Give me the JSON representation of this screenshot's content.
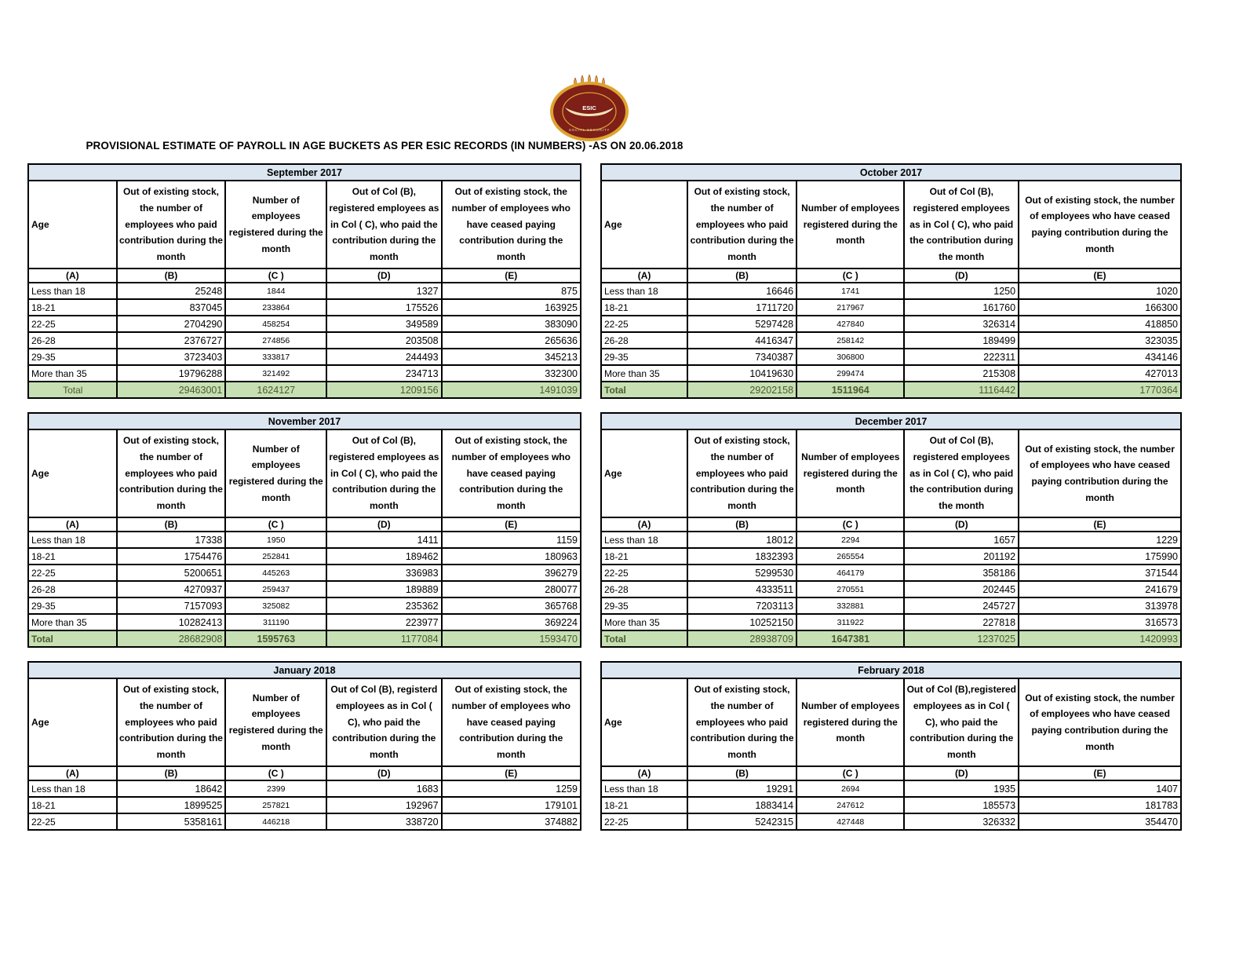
{
  "title": "PROVISIONAL ESTIMATE OF PAYROLL IN AGE BUCKETS AS PER ESIC RECORDS (IN NUMBERS) -AS ON 20.06.2018",
  "logo": {
    "name": "esic-logo",
    "label": "ESIC",
    "subtext": "SOCIAL SECURITY",
    "colors": {
      "maroon": "#7e1f18",
      "gold": "#dfa32e",
      "cream": "#f3e3b5"
    }
  },
  "colors": {
    "month_header_bg": "#dce6f1",
    "total_row_bg": "#c6e0b4",
    "total_text": "#4c5b2d",
    "border": "#000000"
  },
  "letter_row": [
    "(A)",
    "(B)",
    "(C )",
    "(D)",
    "(E)"
  ],
  "tables": [
    {
      "month": "September 2017",
      "headers": [
        "Age",
        "Out of existing stock, the number of employees who paid contribution during the month",
        "Number of employees registered during the month",
        "Out of Col (B), registered employees as in Col ( C), who paid the contribution during the month",
        "Out of existing stock, the number of employees who have ceased paying contribution during the month"
      ],
      "rows": [
        [
          "Less than 18",
          "25248",
          "1844",
          "1327",
          "875"
        ],
        [
          "18-21",
          "837045",
          "233864",
          "175526",
          "163925"
        ],
        [
          "22-25",
          "2704290",
          "458254",
          "349589",
          "383090"
        ],
        [
          "26-28",
          "2376727",
          "274856",
          "203508",
          "265636"
        ],
        [
          "29-35",
          "3723403",
          "333817",
          "244493",
          "345213"
        ],
        [
          "More than 35",
          "19796288",
          "321492",
          "234713",
          "332300"
        ]
      ],
      "total": [
        "Total",
        "29463001",
        "1624127",
        "1209156",
        "1491039"
      ],
      "total_label_align": "center"
    },
    {
      "month": "October 2017",
      "headers": [
        "Age",
        "Out of existing stock, the number of employees who paid contribution during the month",
        "Number of employees registered during the month",
        "Out of Col (B), registered employees as in Col ( C), who paid the contribution during the month",
        "Out of existing stock, the number of employees who have ceased paying contribution during the month"
      ],
      "rows": [
        [
          "Less than 18",
          "16646",
          "1741",
          "1250",
          "1020"
        ],
        [
          "18-21",
          "1711720",
          "217967",
          "161760",
          "166300"
        ],
        [
          "22-25",
          "5297428",
          "427840",
          "326314",
          "418850"
        ],
        [
          "26-28",
          "4416347",
          "258142",
          "189499",
          "323035"
        ],
        [
          "29-35",
          "7340387",
          "306800",
          "222311",
          "434146"
        ],
        [
          "More than 35",
          "10419630",
          "299474",
          "215308",
          "427013"
        ]
      ],
      "total": [
        "Total",
        "29202158",
        "1511964",
        "1116442",
        "1770364"
      ],
      "total_label_align": "left"
    },
    {
      "month": "November 2017",
      "headers": [
        "Age",
        "Out of existing stock, the number of employees who paid contribution during the month",
        "Number of employees registered during the month",
        "Out of Col (B), registered employees as in Col ( C), who paid the contribution during the month",
        "Out of existing stock, the number of employees who have ceased paying contribution during the month"
      ],
      "rows": [
        [
          "Less than 18",
          "17338",
          "1950",
          "1411",
          "1159"
        ],
        [
          "18-21",
          "1754476",
          "252841",
          "189462",
          "180963"
        ],
        [
          "22-25",
          "5200651",
          "445263",
          "336983",
          "396279"
        ],
        [
          "26-28",
          "4270937",
          "259437",
          "189889",
          "280077"
        ],
        [
          "29-35",
          "7157093",
          "325082",
          "235362",
          "365768"
        ],
        [
          "More than 35",
          "10282413",
          "311190",
          "223977",
          "369224"
        ]
      ],
      "total": [
        "Total",
        "28682908",
        "1595763",
        "1177084",
        "1593470"
      ],
      "total_label_align": "left"
    },
    {
      "month": "December 2017",
      "headers": [
        "Age",
        "Out of existing stock, the number of employees who paid contribution during the month",
        "Number of employees registered during the month",
        "Out of Col (B), registered employees as in Col ( C), who paid the contribution during the month",
        "Out of existing stock, the number of employees who have ceased paying contribution during the month"
      ],
      "rows": [
        [
          "Less than 18",
          "18012",
          "2294",
          "1657",
          "1229"
        ],
        [
          "18-21",
          "1832393",
          "265554",
          "201192",
          "175990"
        ],
        [
          "22-25",
          "5299530",
          "464179",
          "358186",
          "371544"
        ],
        [
          "26-28",
          "4333511",
          "270551",
          "202445",
          "241679"
        ],
        [
          "29-35",
          "7203113",
          "332881",
          "245727",
          "313978"
        ],
        [
          "More than 35",
          "10252150",
          "311922",
          "227818",
          "316573"
        ]
      ],
      "total": [
        "Total",
        "28938709",
        "1647381",
        "1237025",
        "1420993"
      ],
      "total_label_align": "left"
    },
    {
      "month": "January 2018",
      "headers": [
        "Age",
        "Out of existing stock, the number of employees who paid contribution during the month",
        "Number of employees registered during the month",
        "Out of Col (B), registerd employees as in Col ( C), who paid the contribution during the month",
        "Out of existing stock, the number of employees who have ceased paying contribution during the month"
      ],
      "rows": [
        [
          "Less than 18",
          "18642",
          "2399",
          "1683",
          "1259"
        ],
        [
          "18-21",
          "1899525",
          "257821",
          "192967",
          "179101"
        ],
        [
          "22-25",
          "5358161",
          "446218",
          "338720",
          "374882"
        ]
      ],
      "total": null,
      "total_label_align": "none"
    },
    {
      "month": "February 2018",
      "headers": [
        "Age",
        "Out of existing stock, the number of employees who paid contribution during the month",
        "Number of employees registered during the month",
        "Out of Col (B),registered employees as in Col ( C), who paid the contribution during the month",
        "Out of existing stock, the number of employees who have ceased paying contribution during the month"
      ],
      "rows": [
        [
          "Less than 18",
          "19291",
          "2694",
          "1935",
          "1407"
        ],
        [
          "18-21",
          "1883414",
          "247612",
          "185573",
          "181783"
        ],
        [
          "22-25",
          "5242315",
          "427448",
          "326332",
          "354470"
        ]
      ],
      "total": null,
      "total_label_align": "none"
    }
  ]
}
